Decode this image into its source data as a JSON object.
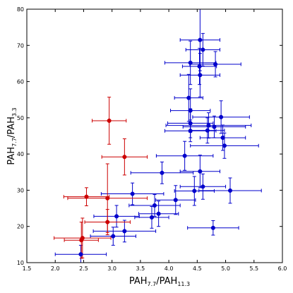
{
  "chart_data": {
    "type": "scatter",
    "title": "",
    "xlabel": {
      "main": "PAH",
      "sub1": "7.7",
      "mid": "/PAH",
      "sub2": "11.3"
    },
    "ylabel": {
      "main": "PAH",
      "sub1": "7.7",
      "mid": "/PAH",
      "sub2": "3.3"
    },
    "xlim": [
      1.5,
      6.0
    ],
    "ylim": [
      10,
      80
    ],
    "x_ticks": [
      "1.5",
      "2.0",
      "2.5",
      "3.0",
      "3.5",
      "4.0",
      "4.5",
      "5.0",
      "5.5",
      "6.0"
    ],
    "y_ticks": [
      "10",
      "20",
      "30",
      "40",
      "50",
      "60",
      "70",
      "80"
    ],
    "grid": false,
    "legend": "none",
    "series": [
      {
        "color": "#0000cc",
        "points": [
          {
            "x": 4.55,
            "y": 71.5,
            "xerr": 0.35,
            "yerr": 8.5
          },
          {
            "x": 4.6,
            "y": 68.8,
            "xerr": 0.3,
            "yerr": 4.5
          },
          {
            "x": 4.38,
            "y": 65.2,
            "xerr": 0.45,
            "yerr": 6.0
          },
          {
            "x": 4.82,
            "y": 64.8,
            "xerr": 0.45,
            "yerr": 3.5
          },
          {
            "x": 4.54,
            "y": 64.2,
            "xerr": 0.3,
            "yerr": 5.0
          },
          {
            "x": 4.55,
            "y": 61.8,
            "xerr": 0.35,
            "yerr": 6.0
          },
          {
            "x": 4.35,
            "y": 55.5,
            "xerr": 0.25,
            "yerr": 6.5
          },
          {
            "x": 4.38,
            "y": 52.0,
            "xerr": 0.35,
            "yerr": 6.0
          },
          {
            "x": 4.92,
            "y": 50.2,
            "xerr": 0.5,
            "yerr": 4.5
          },
          {
            "x": 4.38,
            "y": 48.5,
            "xerr": 0.4,
            "yerr": 4.0
          },
          {
            "x": 4.7,
            "y": 47.9,
            "xerr": 0.75,
            "yerr": 3.5
          },
          {
            "x": 4.8,
            "y": 47.5,
            "xerr": 0.55,
            "yerr": 3.0
          },
          {
            "x": 4.68,
            "y": 46.5,
            "xerr": 0.3,
            "yerr": 3.5
          },
          {
            "x": 4.38,
            "y": 46.4,
            "xerr": 0.45,
            "yerr": 3.0
          },
          {
            "x": 4.95,
            "y": 44.5,
            "xerr": 0.4,
            "yerr": 3.5
          },
          {
            "x": 4.98,
            "y": 42.3,
            "xerr": 0.6,
            "yerr": 3.5
          },
          {
            "x": 4.28,
            "y": 39.5,
            "xerr": 0.5,
            "yerr": 4.0
          },
          {
            "x": 3.88,
            "y": 34.8,
            "xerr": 0.55,
            "yerr": 3.0
          },
          {
            "x": 4.55,
            "y": 35.2,
            "xerr": 0.35,
            "yerr": 4.5
          },
          {
            "x": 4.6,
            "y": 31.0,
            "xerr": 0.4,
            "yerr": 3.5
          },
          {
            "x": 5.08,
            "y": 29.9,
            "xerr": 0.55,
            "yerr": 3.5
          },
          {
            "x": 4.45,
            "y": 29.8,
            "xerr": 0.35,
            "yerr": 4.0
          },
          {
            "x": 3.36,
            "y": 29.0,
            "xerr": 0.55,
            "yerr": 3.0
          },
          {
            "x": 4.12,
            "y": 27.3,
            "xerr": 0.35,
            "yerr": 4.0
          },
          {
            "x": 3.75,
            "y": 25.8,
            "xerr": 0.45,
            "yerr": 3.0
          },
          {
            "x": 3.82,
            "y": 23.5,
            "xerr": 0.35,
            "yerr": 3.5
          },
          {
            "x": 3.7,
            "y": 22.5,
            "xerr": 0.3,
            "yerr": 3.0
          },
          {
            "x": 3.08,
            "y": 22.8,
            "xerr": 0.4,
            "yerr": 3.0
          },
          {
            "x": 3.22,
            "y": 18.7,
            "xerr": 0.55,
            "yerr": 3.0
          },
          {
            "x": 4.78,
            "y": 19.6,
            "xerr": 0.45,
            "yerr": 2.0
          },
          {
            "x": 3.02,
            "y": 17.3,
            "xerr": 0.4,
            "yerr": 2.5
          },
          {
            "x": 2.45,
            "y": 12.3,
            "xerr": 0.45,
            "yerr": 2.5
          }
        ]
      },
      {
        "color": "#cc0000",
        "points": [
          {
            "x": 2.95,
            "y": 49.2,
            "xerr": 0.3,
            "yerr": 6.5
          },
          {
            "x": 3.22,
            "y": 39.2,
            "xerr": 0.4,
            "yerr": 5.0
          },
          {
            "x": 2.55,
            "y": 28.2,
            "xerr": 0.4,
            "yerr": 2.5
          },
          {
            "x": 2.92,
            "y": 27.8,
            "xerr": 0.7,
            "yerr": 9.5
          },
          {
            "x": 2.92,
            "y": 21.2,
            "xerr": 0.4,
            "yerr": 3.5
          },
          {
            "x": 2.48,
            "y": 16.8,
            "xerr": 0.5,
            "yerr": 5.5
          },
          {
            "x": 2.46,
            "y": 16.2,
            "xerr": 0.3,
            "yerr": 5.0
          }
        ]
      }
    ]
  }
}
